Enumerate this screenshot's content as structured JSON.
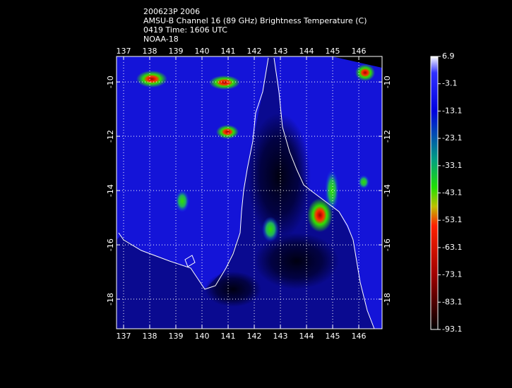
{
  "header": {
    "lines": [
      "200623P 2006",
      "AMSU-B Channel 16 (89 GHz) Brightness Temperature (C)",
      "0419 Time: 1606 UTC",
      "NOAA-18"
    ]
  },
  "map": {
    "xlim": [
      136.73,
      146.89
    ],
    "ylim": [
      -19.09,
      -9.06
    ],
    "xticks": [
      137,
      138,
      139,
      140,
      141,
      142,
      143,
      144,
      145,
      146
    ],
    "yticks": [
      -10,
      -12,
      -14,
      -16,
      -18
    ],
    "grid": true
  },
  "colorbar": {
    "lim": [
      -93.1,
      6.9
    ],
    "ticks": [
      6.9,
      -3.1,
      -13.1,
      -23.1,
      -33.1,
      -43.1,
      -53.1,
      -63.1,
      -73.1,
      -83.1,
      -93.1
    ]
  }
}
